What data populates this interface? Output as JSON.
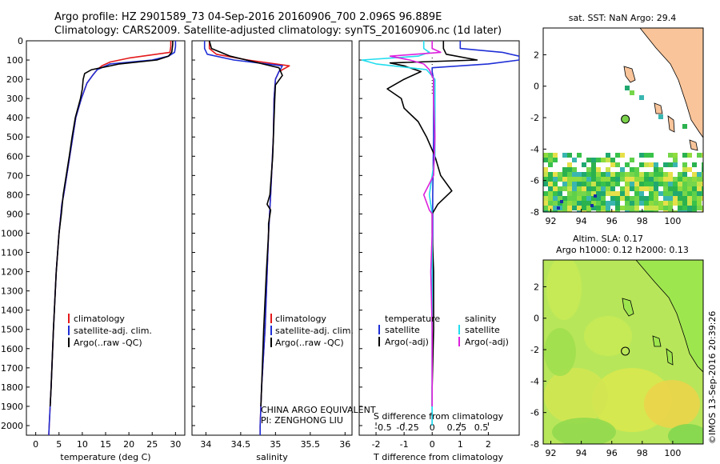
{
  "title_line1": "Argo profile: HZ 2901589_73 04-Sep-2016 20160906_700 2.096S 96.889E",
  "title_line2": "Climatology: CARS2009. Satellite-adjusted climatology: synTS_20160906.nc (1d later)",
  "colors": {
    "climatology": "#e41a1c",
    "satellite": "#1f2fd6",
    "argo": "#000000",
    "sat_salinity": "#22ddee",
    "argo_salinity": "#dd22dd",
    "land": "#f9c49a",
    "ocean_field": "#b8e65a"
  },
  "depth_axis": {
    "ylim": [
      2050,
      0
    ],
    "ticks": [
      0,
      100,
      200,
      300,
      400,
      500,
      600,
      700,
      800,
      900,
      1000,
      1100,
      1200,
      1300,
      1400,
      1500,
      1600,
      1700,
      1800,
      1900,
      2000
    ]
  },
  "chart_data": [
    {
      "type": "line",
      "name": "temperature",
      "xlabel": "temperature (deg C)",
      "xlim": [
        -2,
        32
      ],
      "xticks": [
        0,
        5,
        10,
        15,
        20,
        25,
        30
      ],
      "xtick_labels": [
        "0",
        "5",
        "10",
        "15",
        "20",
        "25",
        "30"
      ],
      "legend": [
        "climatology",
        "satellite-adj. clim.",
        "Argo(..raw -QC)"
      ],
      "series": [
        {
          "name": "climatology",
          "color_key": "climatology",
          "depth": [
            0,
            30,
            60,
            90,
            110,
            130,
            150,
            180,
            220,
            300,
            400,
            600,
            800,
            850,
            1000,
            1200,
            1500,
            1800,
            2000,
            2050
          ],
          "values": [
            29.0,
            29.0,
            28.8,
            20,
            16,
            14.2,
            13.2,
            12.2,
            11.0,
            9.8,
            8.6,
            7.3,
            6.0,
            5.6,
            5.0,
            4.4,
            3.8,
            3.3,
            2.9,
            2.8
          ]
        },
        {
          "name": "satellite-adj. clim.",
          "color_key": "satellite",
          "depth": [
            0,
            30,
            60,
            80,
            100,
            120,
            150,
            180,
            220,
            300,
            400,
            600,
            800,
            850,
            1000,
            1200,
            1500,
            1800,
            2000,
            2050
          ],
          "values": [
            30.0,
            30.0,
            29.8,
            28.5,
            25,
            16,
            13.2,
            12.2,
            11.0,
            9.8,
            8.6,
            7.3,
            6.0,
            5.6,
            5.0,
            4.4,
            3.8,
            3.3,
            2.9,
            2.8
          ]
        },
        {
          "name": "Argo(..raw -QC)",
          "color_key": "argo",
          "depth": [
            0,
            20,
            40,
            60,
            80,
            100,
            120,
            150,
            170,
            200,
            250,
            300,
            400,
            500,
            600,
            800,
            900,
            1000,
            1200,
            1500,
            1800,
            1900
          ],
          "values": [
            29.4,
            29.4,
            29.3,
            29.2,
            28.5,
            26,
            18,
            12,
            10.5,
            10.2,
            10.0,
            9.6,
            8.5,
            7.8,
            7.2,
            5.9,
            5.5,
            5.0,
            4.4,
            3.8,
            3.3,
            3.1
          ]
        }
      ]
    },
    {
      "type": "line",
      "name": "salinity",
      "xlabel": "salinity",
      "xlim": [
        33.8,
        36.1
      ],
      "xticks": [
        34,
        34.5,
        35,
        35.5,
        36
      ],
      "xtick_labels": [
        "34",
        "34.5",
        "35",
        "35.5",
        "36"
      ],
      "legend": [
        "climatology",
        "satellite-adj. clim.",
        "Argo(..raw -QC)"
      ],
      "annotations": [
        "CHINA ARGO EQUIVALENT",
        "PI: ZENGHONG LIU"
      ],
      "series": [
        {
          "name": "climatology",
          "color_key": "climatology",
          "depth": [
            0,
            40,
            70,
            100,
            130,
            160,
            200,
            300,
            500,
            800,
            1000,
            1500,
            1800,
            2000,
            2050
          ],
          "values": [
            34.05,
            34.05,
            34.15,
            34.6,
            35.2,
            35.05,
            35.0,
            34.98,
            34.97,
            34.93,
            34.9,
            34.85,
            34.8,
            34.78,
            34.78
          ]
        },
        {
          "name": "satellite-adj. clim.",
          "color_key": "satellite",
          "depth": [
            0,
            40,
            70,
            100,
            130,
            160,
            200,
            300,
            500,
            800,
            1000,
            1500,
            1800,
            2000,
            2050
          ],
          "values": [
            33.98,
            33.98,
            34.02,
            34.4,
            35.1,
            35.05,
            35.0,
            34.98,
            34.97,
            34.93,
            34.9,
            34.85,
            34.8,
            34.78,
            34.78
          ]
        },
        {
          "name": "Argo(..raw -QC)",
          "color_key": "argo",
          "depth": [
            0,
            40,
            80,
            110,
            140,
            180,
            230,
            300,
            400,
            600,
            800,
            850,
            880,
            950,
            1000,
            1200,
            1500,
            1800,
            1900
          ],
          "values": [
            34.05,
            34.08,
            34.35,
            34.7,
            35.05,
            35.1,
            35.0,
            34.99,
            34.98,
            34.96,
            34.92,
            34.88,
            34.93,
            34.9,
            34.9,
            34.87,
            34.83,
            34.8,
            34.79
          ]
        }
      ]
    },
    {
      "type": "line",
      "name": "differences",
      "xlabel": "T difference from climatology",
      "xlabel_top": "S difference from climatology",
      "xlim": [
        -2.6,
        3.1
      ],
      "xticks": [
        -2,
        -1,
        0,
        1,
        2
      ],
      "xtick_labels": [
        "-2",
        "-1",
        "0",
        "1",
        "2"
      ],
      "s_xticks_T": [
        -2,
        -1,
        0,
        1,
        2
      ],
      "s_xtick_labels": [
        "-0.5",
        "-0.25",
        "0",
        "0.25",
        "0.5"
      ],
      "legend_titles": [
        "temperature",
        "salinity"
      ],
      "legend": [
        "satellite",
        "Argo(-adj)",
        "satellite",
        "Argo(-adj)"
      ],
      "series": [
        {
          "name": "T satellite",
          "color_key": "satellite",
          "depth": [
            0,
            40,
            60,
            80,
            100,
            120,
            140,
            160,
            200,
            300,
            500,
            800,
            1000,
            1500,
            2000
          ],
          "values": [
            1.0,
            1.0,
            2.5,
            3.1,
            3.1,
            2.0,
            0,
            0.0,
            0.05,
            0.05,
            0.05,
            0.02,
            0.02,
            0.0,
            0.0
          ]
        },
        {
          "name": "T Argo(-adj)",
          "color_key": "argo",
          "depth": [
            0,
            40,
            70,
            100,
            115,
            130,
            160,
            200,
            250,
            300,
            350,
            420,
            500,
            600,
            700,
            780,
            850,
            900,
            1000,
            1200,
            1500,
            1800,
            1900
          ],
          "values": [
            0.4,
            0.4,
            0.5,
            1.6,
            -1.5,
            -1.0,
            -0.4,
            -1.0,
            -1.6,
            -1.1,
            -1.0,
            -0.5,
            -0.2,
            0.1,
            0.3,
            0.7,
            0.2,
            0.0,
            0.0,
            0.05,
            0.05,
            0.0,
            0.0
          ]
        },
        {
          "name": "S satellite",
          "color_key": "sat_salinity",
          "depth": [
            0,
            40,
            60,
            80,
            100,
            120,
            150,
            200,
            300,
            600,
            800,
            900,
            1000,
            1500,
            2000
          ],
          "values": [
            -0.3,
            -0.3,
            -0.1,
            -0.5,
            -2.5,
            -2.0,
            -0.2,
            0.1,
            0.1,
            0.1,
            -0.1,
            0.0,
            0.0,
            0.0,
            0.0
          ]
        },
        {
          "name": "S Argo(-adj)",
          "color_key": "argo_salinity",
          "depth": [
            0,
            40,
            60,
            80,
            100,
            120,
            150,
            200,
            300,
            500,
            700,
            800,
            880,
            900,
            1000,
            1200,
            1500,
            1800,
            1900
          ],
          "values": [
            0.0,
            0.0,
            0.3,
            -1.5,
            -0.8,
            -0.3,
            -0.1,
            0.05,
            0.05,
            0.1,
            0.05,
            -0.3,
            -0.1,
            0.0,
            0.0,
            -0.05,
            0.0,
            0.0,
            0.0
          ]
        }
      ]
    },
    {
      "type": "heatmap",
      "name": "sst_map",
      "title": "sat. SST: NaN Argo: 29.4",
      "xlim": [
        91.5,
        102
      ],
      "ylim": [
        -8,
        3.7
      ],
      "xticks": [
        92,
        94,
        96,
        98,
        100
      ],
      "yticks": [
        -8,
        -6,
        -4,
        -2,
        0,
        2
      ],
      "float_position": [
        96.889,
        -2.096
      ]
    },
    {
      "type": "heatmap",
      "name": "sla_map",
      "title_line1": "Altim. SLA: 0.17",
      "title_line2": "Argo h1000: 0.12 h2000: 0.13",
      "xlim": [
        91.5,
        102
      ],
      "ylim": [
        -8,
        3.7
      ],
      "xticks": [
        92,
        94,
        96,
        98,
        100
      ],
      "yticks": [
        -8,
        -6,
        -4,
        -2,
        0,
        2
      ],
      "float_position": [
        96.889,
        -2.096
      ]
    }
  ],
  "credit": "©IMOS 13-Sep-2016 20:39:26"
}
